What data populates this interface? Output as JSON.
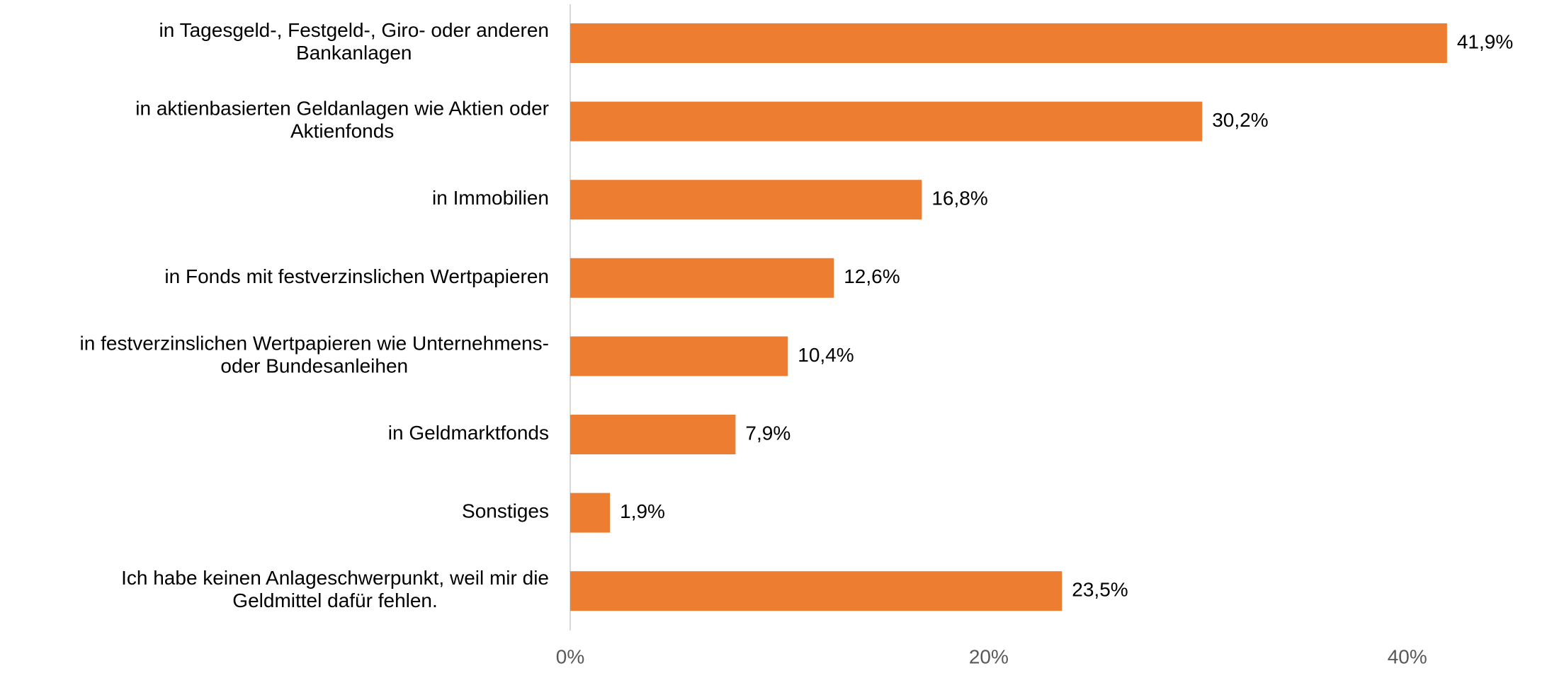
{
  "chart_data": {
    "type": "bar",
    "orientation": "horizontal",
    "categories": [
      "in Tagesgeld-, Festgeld-, Giro- oder anderen\nBankanlagen",
      "in aktienbasierten Geldanlagen wie Aktien oder\nAktienfonds",
      "in Immobilien",
      "in Fonds mit festverzinslichen Wertpapieren",
      "in festverzinslichen Wertpapieren wie Unternehmens-\noder Bundesanleihen",
      "in Geldmarktfonds",
      "Sonstiges",
      "Ich habe keinen Anlageschwerpunkt, weil mir die\nGeldmittel dafür fehlen."
    ],
    "values": [
      41.9,
      30.2,
      16.8,
      12.6,
      10.4,
      7.9,
      1.9,
      23.5
    ],
    "value_labels": [
      "41,9%",
      "30,2%",
      "16,8%",
      "12,6%",
      "10,4%",
      "7,9%",
      "1,9%",
      "23,5%"
    ],
    "color": "#ed7d31",
    "xlim": [
      0,
      46
    ],
    "xticks": [
      {
        "value": 0,
        "label": "0%"
      },
      {
        "value": 20,
        "label": "20%"
      },
      {
        "value": 40,
        "label": "40%"
      }
    ],
    "grid": false
  }
}
